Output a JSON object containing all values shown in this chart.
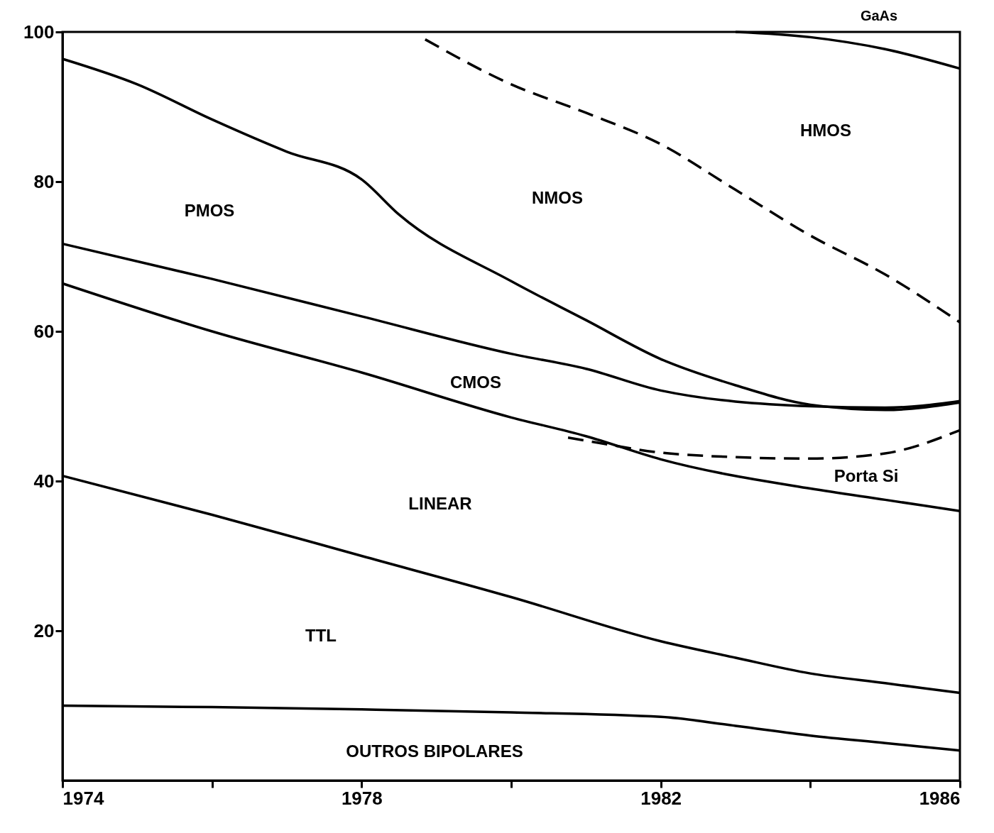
{
  "chart_data": {
    "type": "line",
    "xlim": [
      1974,
      1986
    ],
    "ylim": [
      0,
      100
    ],
    "xticks": [
      1974,
      {
        "value": 1976,
        "label": null
      },
      1978,
      {
        "value": 1980,
        "label": null
      },
      1982,
      {
        "value": 1984,
        "label": null
      },
      1986
    ],
    "yticks": [
      20,
      40,
      60,
      80,
      100
    ],
    "grid": false,
    "marker": "none",
    "series": [
      {
        "color": "#000000",
        "line_style": "solid",
        "x": [
          1974,
          1976,
          1978,
          1980,
          1982,
          1983,
          1984,
          1985,
          1986
        ],
        "values": [
          10,
          9.8,
          9.5,
          9.1,
          8.5,
          7.3,
          6,
          5,
          4
        ]
      },
      {
        "color": "#000000",
        "line_style": "solid",
        "x": [
          1974,
          1976,
          1978,
          1980,
          1982,
          1983,
          1984,
          1985,
          1986
        ],
        "values": [
          40.7,
          35.5,
          30,
          24.5,
          18.6,
          16.4,
          14.3,
          13,
          11.7
        ]
      },
      {
        "color": "#000000",
        "line_style": "solid",
        "x": [
          1974,
          1976,
          1978,
          1980,
          1981,
          1982,
          1984,
          1985,
          1986
        ],
        "values": [
          66.4,
          60,
          54.5,
          48.5,
          46,
          42.9,
          39,
          37.5,
          36
        ]
      },
      {
        "color": "#000000",
        "line_style": "solid",
        "x": [
          1974,
          1976,
          1978,
          1980,
          1981,
          1982,
          1984,
          1985,
          1986
        ],
        "values": [
          71.7,
          67,
          62,
          57,
          55,
          52.1,
          50,
          49.8,
          50.7
        ]
      },
      {
        "color": "#000000",
        "line_style": "solid",
        "x": [
          1974,
          1975,
          1976,
          1977,
          1978,
          1978.5,
          1980,
          1981,
          1982,
          1983,
          1984,
          1985,
          1986
        ],
        "values": [
          96.4,
          93,
          88.3,
          84,
          80.3,
          75.6,
          66.7,
          61.5,
          56.3,
          52.8,
          50.2,
          49.5,
          50.5
        ]
      },
      {
        "color": "#000000",
        "line_style": "dashed",
        "x": [
          1978.85,
          1980,
          1981,
          1982,
          1983,
          1984,
          1985,
          1986
        ],
        "values": [
          99,
          93,
          89.2,
          85,
          78.9,
          72.8,
          67.6,
          61.2
        ]
      },
      {
        "color": "#000000",
        "line_style": "dashed",
        "x": [
          1980.76,
          1981,
          1982,
          1983,
          1984,
          1985,
          1986
        ],
        "values": [
          45.8,
          45.4,
          43.8,
          43.2,
          43,
          43.7,
          46.8
        ]
      },
      {
        "color": "#000000",
        "line_style": "solid",
        "x": [
          1983,
          1984,
          1985,
          1986
        ],
        "values": [
          100,
          99.3,
          97.7,
          95.1
        ]
      }
    ],
    "annotations": [
      "PMOS",
      "NMOS",
      "HMOS",
      "CMOS",
      "Porta Si",
      "LINEAR",
      "TTL",
      "OUTROS BIPOLARES",
      "GaAs"
    ]
  }
}
